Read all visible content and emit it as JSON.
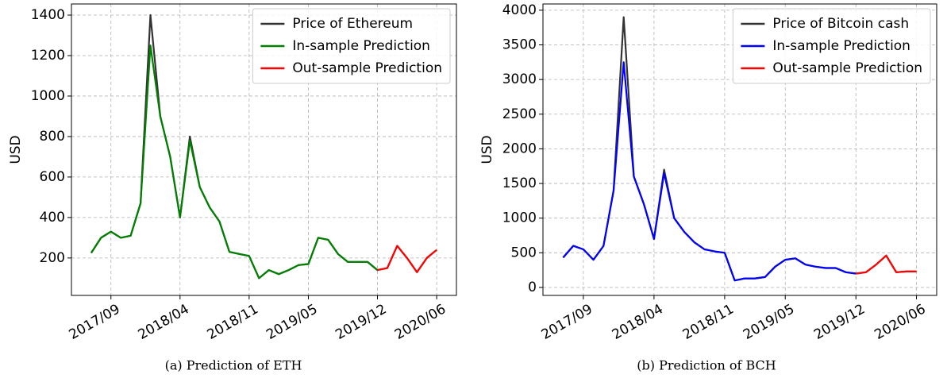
{
  "chart_data": [
    {
      "type": "line",
      "caption": "(a) Prediction of ETH",
      "ylabel": "USD",
      "x": [
        "2017/07",
        "2017/08",
        "2017/09",
        "2017/10",
        "2017/11",
        "2017/12",
        "2018/01",
        "2018/02",
        "2018/03",
        "2018/04",
        "2018/05",
        "2018/06",
        "2018/07",
        "2018/08",
        "2018/09",
        "2018/10",
        "2018/11",
        "2018/12",
        "2019/01",
        "2019/02",
        "2019/03",
        "2019/04",
        "2019/05",
        "2019/06",
        "2019/07",
        "2019/08",
        "2019/09",
        "2019/10",
        "2019/11",
        "2019/12",
        "2020/01",
        "2020/02",
        "2020/03",
        "2020/04",
        "2020/05",
        "2020/06"
      ],
      "series": [
        {
          "name": "Price of Ethereum",
          "color": "#333333",
          "values": [
            225,
            300,
            330,
            300,
            310,
            470,
            1400,
            900,
            700,
            400,
            800,
            550,
            450,
            380,
            230,
            220,
            210,
            100,
            140,
            120,
            140,
            165,
            170,
            300,
            290,
            220,
            180,
            180,
            180,
            140,
            150,
            260,
            200,
            130,
            200,
            240
          ]
        },
        {
          "name": "In-sample Prediction",
          "color": "#008000",
          "values": [
            225,
            300,
            330,
            300,
            310,
            470,
            1250,
            900,
            700,
            400,
            780,
            550,
            450,
            380,
            230,
            220,
            210,
            100,
            140,
            120,
            140,
            165,
            170,
            300,
            290,
            220,
            180,
            180,
            180,
            140,
            null,
            null,
            null,
            null,
            null,
            null
          ]
        },
        {
          "name": "Out-sample Prediction",
          "color": "#ff0000",
          "values": [
            null,
            null,
            null,
            null,
            null,
            null,
            null,
            null,
            null,
            null,
            null,
            null,
            null,
            null,
            null,
            null,
            null,
            null,
            null,
            null,
            null,
            null,
            null,
            null,
            null,
            null,
            null,
            null,
            null,
            140,
            150,
            260,
            200,
            130,
            200,
            240
          ]
        }
      ],
      "xlim": [
        "2017/05",
        "2020/08"
      ],
      "xticks": [
        "2017/09",
        "2018/04",
        "2018/11",
        "2019/05",
        "2019/12",
        "2020/06"
      ],
      "ylim": [
        15,
        1455
      ],
      "yticks": [
        200,
        400,
        600,
        800,
        1000,
        1200,
        1400
      ],
      "grid": true,
      "legend": "upper right"
    },
    {
      "type": "line",
      "caption": "(b) Prediction of BCH",
      "ylabel": "USD",
      "x": [
        "2017/07",
        "2017/08",
        "2017/09",
        "2017/10",
        "2017/11",
        "2017/12",
        "2018/01",
        "2018/02",
        "2018/03",
        "2018/04",
        "2018/05",
        "2018/06",
        "2018/07",
        "2018/08",
        "2018/09",
        "2018/10",
        "2018/11",
        "2018/12",
        "2019/01",
        "2019/02",
        "2019/03",
        "2019/04",
        "2019/05",
        "2019/06",
        "2019/07",
        "2019/08",
        "2019/09",
        "2019/10",
        "2019/11",
        "2019/12",
        "2020/01",
        "2020/02",
        "2020/03",
        "2020/04",
        "2020/05",
        "2020/06"
      ],
      "series": [
        {
          "name": "Price of Bitcoin cash",
          "color": "#333333",
          "values": [
            430,
            600,
            550,
            400,
            600,
            1400,
            3900,
            1600,
            1200,
            700,
            1700,
            1000,
            800,
            650,
            550,
            520,
            500,
            100,
            130,
            130,
            150,
            300,
            400,
            420,
            330,
            300,
            280,
            280,
            220,
            200,
            220,
            330,
            460,
            220,
            230,
            230
          ]
        },
        {
          "name": "In-sample Prediction",
          "color": "#0000ff",
          "values": [
            430,
            600,
            550,
            400,
            600,
            1400,
            3250,
            1600,
            1200,
            700,
            1650,
            1000,
            800,
            650,
            550,
            520,
            500,
            100,
            130,
            130,
            150,
            300,
            400,
            420,
            330,
            300,
            280,
            280,
            220,
            200,
            null,
            null,
            null,
            null,
            null,
            null
          ]
        },
        {
          "name": "Out-sample Prediction",
          "color": "#ff0000",
          "values": [
            null,
            null,
            null,
            null,
            null,
            null,
            null,
            null,
            null,
            null,
            null,
            null,
            null,
            null,
            null,
            null,
            null,
            null,
            null,
            null,
            null,
            null,
            null,
            null,
            null,
            null,
            null,
            null,
            null,
            200,
            220,
            330,
            460,
            220,
            230,
            230
          ]
        }
      ],
      "xlim": [
        "2017/05",
        "2020/08"
      ],
      "xticks": [
        "2017/09",
        "2018/04",
        "2018/11",
        "2019/05",
        "2019/12",
        "2020/06"
      ],
      "ylim": [
        -115,
        4090
      ],
      "yticks": [
        0,
        500,
        1000,
        1500,
        2000,
        2500,
        3000,
        3500,
        4000
      ],
      "grid": true,
      "legend": "upper right"
    }
  ]
}
